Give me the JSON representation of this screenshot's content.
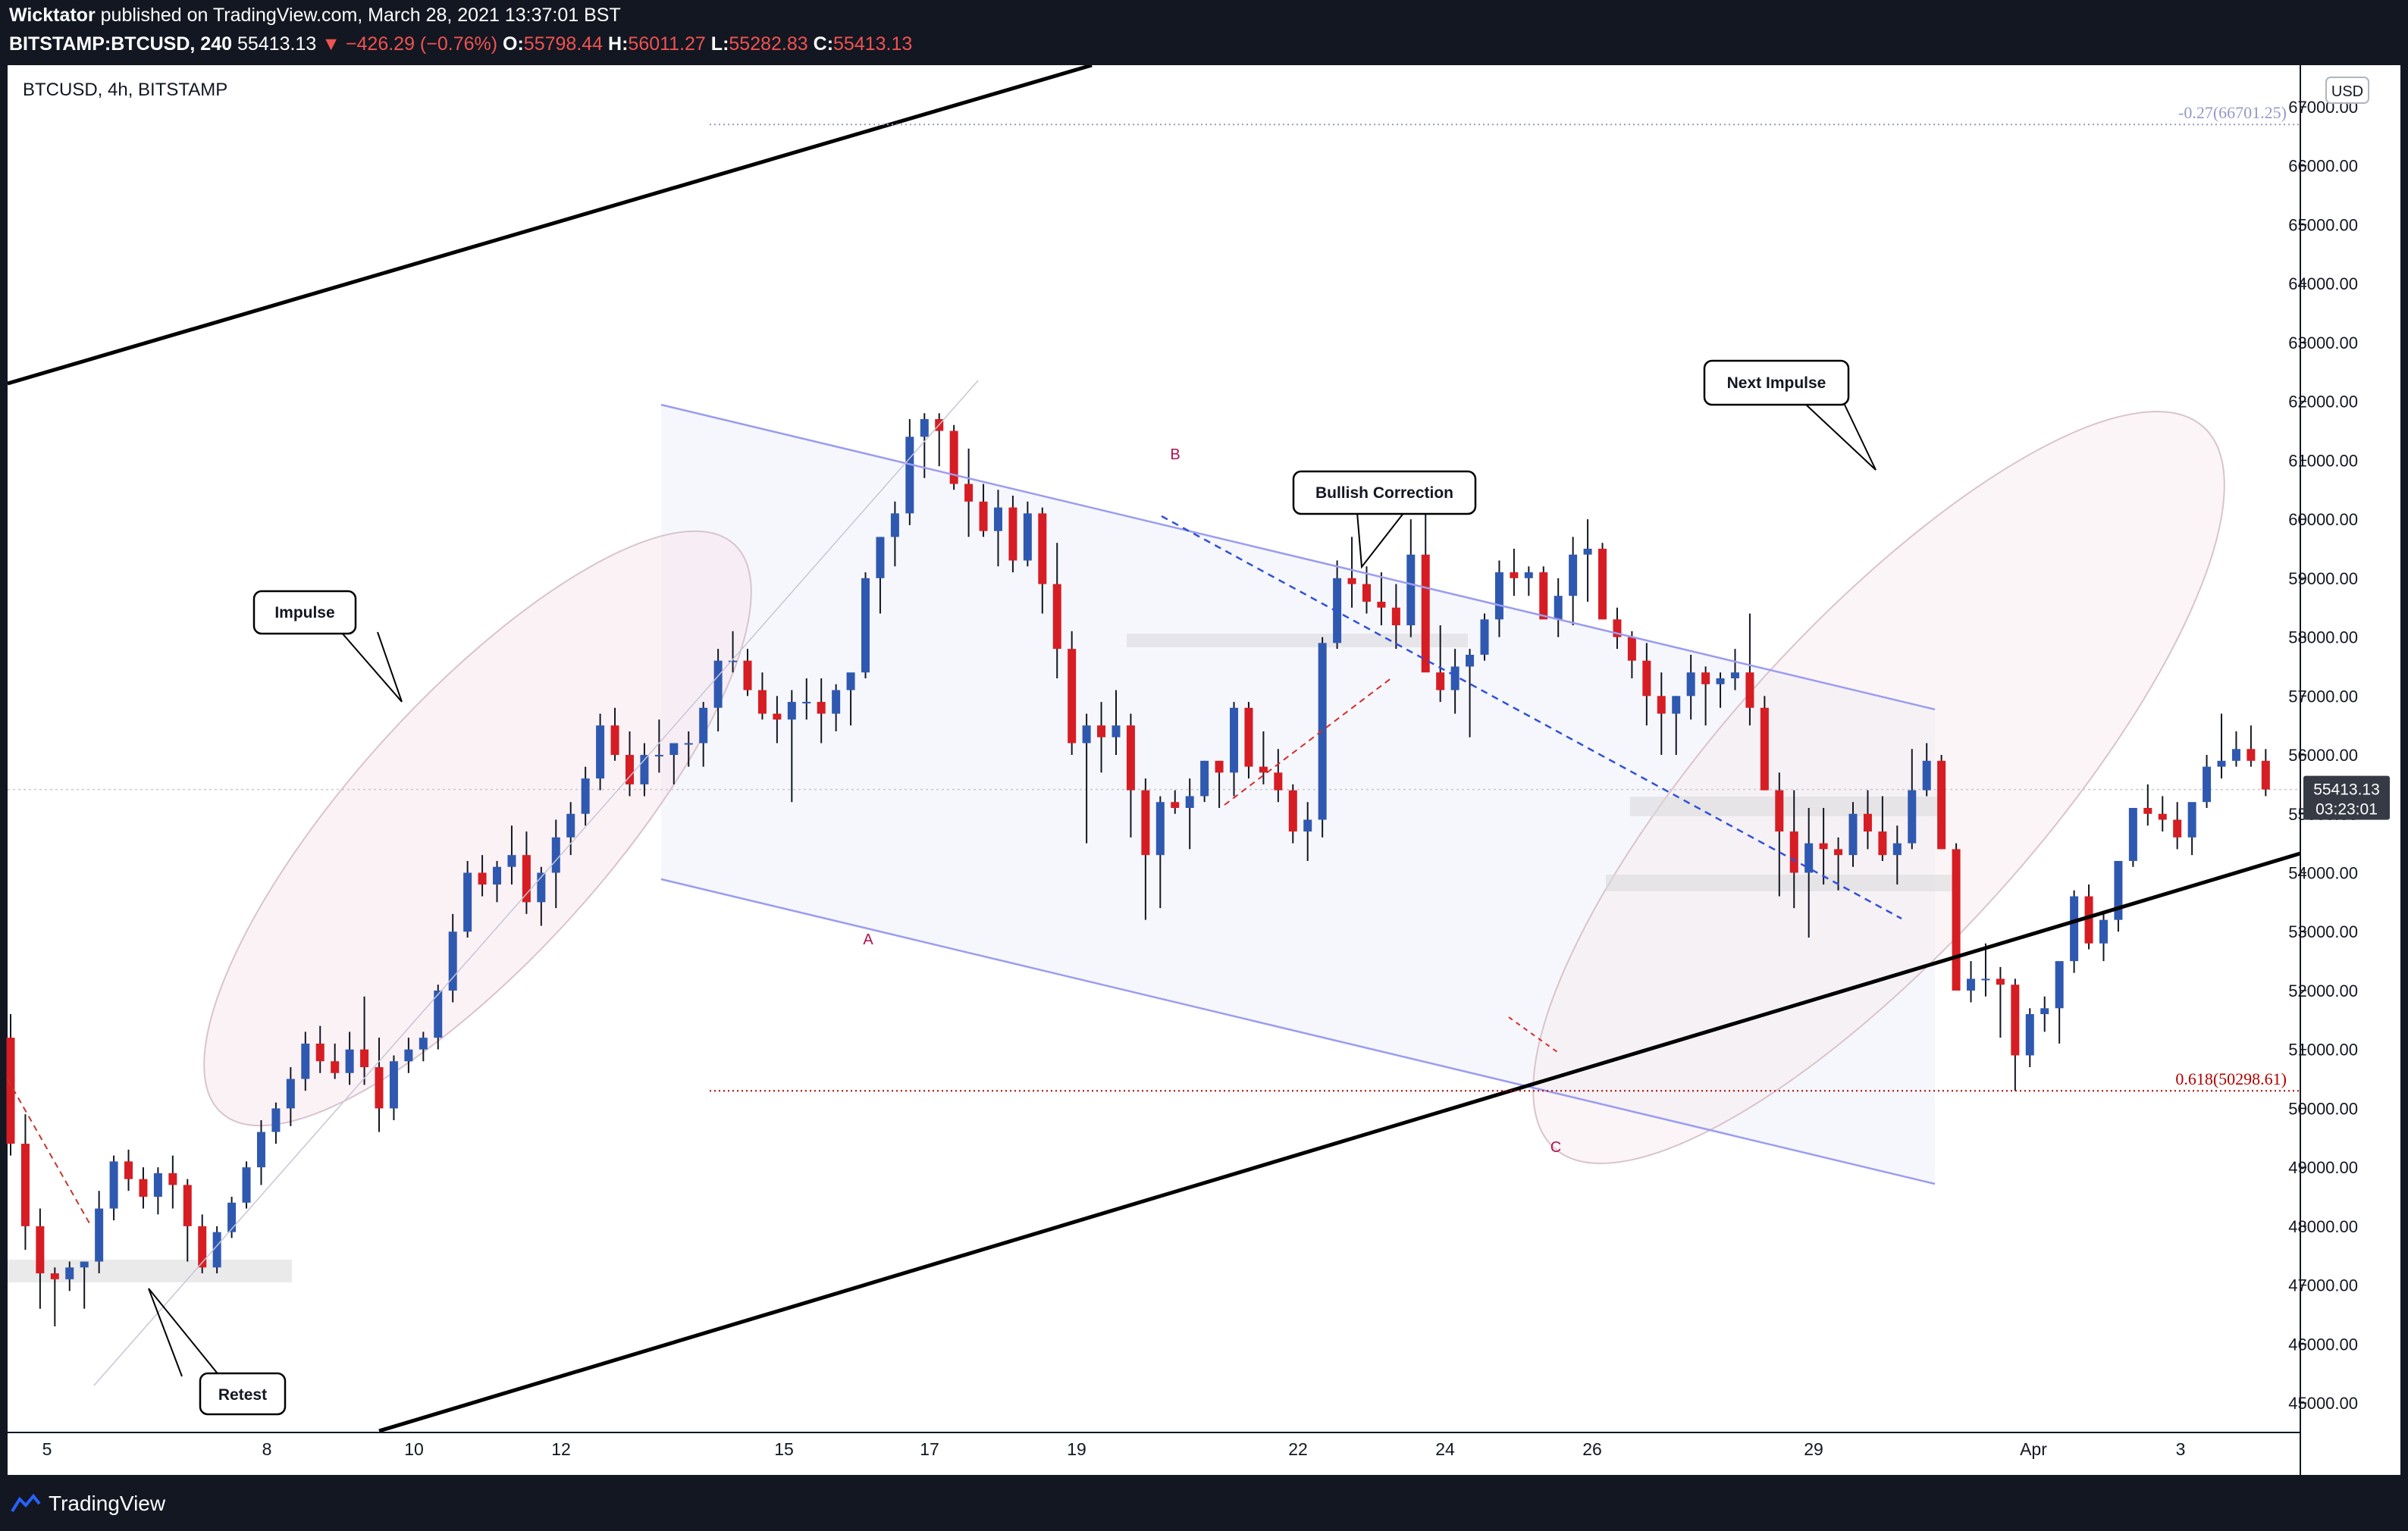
{
  "header": {
    "author": "Wicktator",
    "published": "published on TradingView.com, March 28, 2021 13:37:01 BST",
    "symbol": "BITSTAMP:BTCUSD, 240",
    "last": "55413.13",
    "change_arrow": "▼",
    "change": "−426.29 (−0.76%)",
    "o_label": "O:",
    "o": "55798.44",
    "h_label": "H:",
    "h": "56011.27",
    "l_label": "L:",
    "l": "55282.83",
    "c_label": "C:",
    "c": "55413.13"
  },
  "legend": "BTCUSD, 4h, BITSTAMP",
  "currency": "USD",
  "footer": {
    "brand": "TradingView"
  },
  "colors": {
    "up": "#2f59b0",
    "down": "#d61d23",
    "bg": "#131722"
  },
  "chart_data": {
    "type": "candlestick",
    "x": [
      "5",
      "8",
      "10",
      "12",
      "15",
      "17",
      "19",
      "22",
      "24",
      "26",
      "29",
      "Apr",
      "3"
    ],
    "y_ticks": [
      45000,
      46000,
      47000,
      48000,
      49000,
      50000,
      51000,
      52000,
      53000,
      54000,
      55000,
      56000,
      57000,
      58000,
      59000,
      60000,
      61000,
      62000,
      63000,
      64000,
      65000,
      66000,
      67000
    ],
    "ylim": [
      44700,
      67400
    ],
    "last_price": "55413.13",
    "countdown": "03:23:01",
    "fib_levels": [
      {
        "label": "-0.27(66701.25)",
        "value": 66701.25,
        "color": "#9598c8"
      },
      {
        "label": "0.618(50298.61)",
        "value": 50298.61,
        "color": "#b00000"
      }
    ],
    "annotations": [
      "Impulse",
      "Retest",
      "Bullish Correction",
      "Next Impulse",
      "A",
      "B",
      "C"
    ],
    "candles": [
      [
        51200,
        51600,
        49200,
        49400
      ],
      [
        49400,
        49900,
        47600,
        48000
      ],
      [
        48000,
        48300,
        46600,
        47200
      ],
      [
        47200,
        47300,
        46300,
        47100
      ],
      [
        47100,
        47400,
        46900,
        47300
      ],
      [
        47300,
        47400,
        46600,
        47400
      ],
      [
        47400,
        48600,
        47200,
        48300
      ],
      [
        48300,
        49200,
        48100,
        49100
      ],
      [
        49100,
        49300,
        48600,
        48800
      ],
      [
        48800,
        49000,
        48300,
        48500
      ],
      [
        48500,
        49000,
        48200,
        48900
      ],
      [
        48900,
        49200,
        48300,
        48700
      ],
      [
        48700,
        48800,
        47400,
        48000
      ],
      [
        48000,
        48200,
        47200,
        47300
      ],
      [
        47300,
        48000,
        47200,
        47900
      ],
      [
        47900,
        48500,
        47800,
        48400
      ],
      [
        48400,
        49100,
        48300,
        49000
      ],
      [
        49000,
        49800,
        48700,
        49600
      ],
      [
        49600,
        50100,
        49400,
        50000
      ],
      [
        50000,
        50700,
        49700,
        50500
      ],
      [
        50500,
        51300,
        50300,
        51100
      ],
      [
        51100,
        51400,
        50600,
        50800
      ],
      [
        50800,
        51100,
        50500,
        50600
      ],
      [
        50600,
        51300,
        50400,
        51000
      ],
      [
        51000,
        51900,
        50400,
        50700
      ],
      [
        50700,
        51200,
        49600,
        50000
      ],
      [
        50000,
        50900,
        49800,
        50800
      ],
      [
        50800,
        51200,
        50600,
        51000
      ],
      [
        51000,
        51300,
        50800,
        51200
      ],
      [
        51200,
        52100,
        51000,
        52000
      ],
      [
        52000,
        53300,
        51800,
        53000
      ],
      [
        53000,
        54200,
        52900,
        54000
      ],
      [
        54000,
        54300,
        53600,
        53800
      ],
      [
        53800,
        54200,
        53500,
        54100
      ],
      [
        54100,
        54800,
        53800,
        54300
      ],
      [
        54300,
        54700,
        53300,
        53500
      ],
      [
        53500,
        54100,
        53100,
        54000
      ],
      [
        54000,
        54900,
        53400,
        54600
      ],
      [
        54600,
        55200,
        54300,
        55000
      ],
      [
        55000,
        55800,
        54800,
        55600
      ],
      [
        55600,
        56700,
        55400,
        56500
      ],
      [
        56500,
        56800,
        55900,
        56000
      ],
      [
        56000,
        56400,
        55300,
        55500
      ],
      [
        55500,
        56200,
        55300,
        56000
      ],
      [
        56000,
        56600,
        55700,
        56000
      ],
      [
        56000,
        56200,
        55500,
        56200
      ],
      [
        56200,
        56400,
        55800,
        56200
      ],
      [
        56200,
        56900,
        55800,
        56800
      ],
      [
        56800,
        57800,
        56400,
        57600
      ],
      [
        57600,
        58100,
        57400,
        57600
      ],
      [
        57600,
        57800,
        57000,
        57100
      ],
      [
        57100,
        57400,
        56600,
        56700
      ],
      [
        56700,
        57000,
        56200,
        56600
      ],
      [
        56600,
        57100,
        55200,
        56900
      ],
      [
        56900,
        57300,
        56600,
        56900
      ],
      [
        56900,
        57300,
        56200,
        56700
      ],
      [
        56700,
        57200,
        56400,
        57100
      ],
      [
        57100,
        57300,
        56500,
        57400
      ],
      [
        57400,
        59100,
        57300,
        59000
      ],
      [
        59000,
        59700,
        58400,
        59700
      ],
      [
        59700,
        60300,
        59200,
        60100
      ],
      [
        60100,
        61700,
        59900,
        61400
      ],
      [
        61400,
        61800,
        60700,
        61700
      ],
      [
        61700,
        61800,
        60900,
        61500
      ],
      [
        61500,
        61600,
        60500,
        60600
      ],
      [
        60600,
        61200,
        59700,
        60300
      ],
      [
        60300,
        60600,
        59700,
        59800
      ],
      [
        59800,
        60500,
        59200,
        60200
      ],
      [
        60200,
        60400,
        59100,
        59300
      ],
      [
        59300,
        60300,
        59200,
        60100
      ],
      [
        60100,
        60200,
        58400,
        58900
      ],
      [
        58900,
        59600,
        57300,
        57800
      ],
      [
        57800,
        58100,
        56000,
        56200
      ],
      [
        56200,
        56700,
        54500,
        56500
      ],
      [
        56500,
        56900,
        55700,
        56300
      ],
      [
        56300,
        57100,
        56000,
        56500
      ],
      [
        56500,
        56700,
        54600,
        55400
      ],
      [
        55400,
        55600,
        53200,
        54300
      ],
      [
        54300,
        55300,
        53400,
        55200
      ],
      [
        55200,
        55400,
        55000,
        55100
      ],
      [
        55100,
        55600,
        54400,
        55300
      ],
      [
        55300,
        55900,
        55200,
        55900
      ],
      [
        55900,
        55900,
        55100,
        55700
      ],
      [
        55700,
        56900,
        55300,
        56800
      ],
      [
        56800,
        56900,
        55600,
        55800
      ],
      [
        55800,
        56400,
        55500,
        55700
      ],
      [
        55700,
        56100,
        55200,
        55400
      ],
      [
        55400,
        55500,
        54500,
        54700
      ],
      [
        54700,
        55200,
        54200,
        54900
      ],
      [
        54900,
        58000,
        54600,
        57900
      ],
      [
        57900,
        59300,
        57800,
        59000
      ],
      [
        59000,
        59700,
        58500,
        58900
      ],
      [
        58900,
        59200,
        58400,
        58600
      ],
      [
        58600,
        59100,
        58200,
        58500
      ],
      [
        58500,
        58900,
        57800,
        58200
      ],
      [
        58200,
        60000,
        58000,
        59400
      ],
      [
        59400,
        60100,
        57500,
        57400
      ],
      [
        57400,
        58200,
        56900,
        57100
      ],
      [
        57100,
        57800,
        56700,
        57500
      ],
      [
        57500,
        57800,
        56300,
        57700
      ],
      [
        57700,
        58400,
        57600,
        58300
      ],
      [
        58300,
        59300,
        58000,
        59100
      ],
      [
        59100,
        59500,
        58700,
        59000
      ],
      [
        59000,
        59200,
        58700,
        59100
      ],
      [
        59100,
        59200,
        58400,
        58300
      ],
      [
        58300,
        59000,
        58000,
        58700
      ],
      [
        58700,
        59700,
        58200,
        59400
      ],
      [
        59400,
        60000,
        58600,
        59500
      ],
      [
        59500,
        59600,
        58300,
        58300
      ],
      [
        58300,
        58500,
        57800,
        58000
      ],
      [
        58000,
        58100,
        57300,
        57600
      ],
      [
        57600,
        57900,
        56500,
        57000
      ],
      [
        57000,
        57400,
        56000,
        56700
      ],
      [
        56700,
        57000,
        56000,
        57000
      ],
      [
        57000,
        57700,
        56600,
        57400
      ],
      [
        57400,
        57500,
        56500,
        57200
      ],
      [
        57200,
        57400,
        56800,
        57300
      ],
      [
        57300,
        57800,
        57100,
        57400
      ],
      [
        57400,
        58400,
        56500,
        56800
      ],
      [
        56800,
        57000,
        55400,
        55400
      ],
      [
        55400,
        55700,
        53600,
        54700
      ],
      [
        54700,
        55400,
        53400,
        54000
      ],
      [
        54000,
        55100,
        52900,
        54500
      ],
      [
        54500,
        55100,
        53800,
        54400
      ],
      [
        54400,
        54600,
        53700,
        54300
      ],
      [
        54300,
        55200,
        54100,
        55000
      ],
      [
        55000,
        55400,
        54400,
        54700
      ],
      [
        54700,
        55300,
        54200,
        54300
      ],
      [
        54300,
        54800,
        53800,
        54500
      ],
      [
        54500,
        56100,
        54400,
        55400
      ],
      [
        55400,
        56200,
        55300,
        55900
      ],
      [
        55900,
        56000,
        54500,
        54400
      ],
      [
        54400,
        54500,
        52200,
        52000
      ],
      [
        52000,
        52500,
        51800,
        52200
      ],
      [
        52200,
        52800,
        51900,
        52200
      ],
      [
        52200,
        52400,
        51200,
        52100
      ],
      [
        52100,
        52200,
        50300,
        50900
      ],
      [
        50900,
        51700,
        50700,
        51600
      ],
      [
        51600,
        51900,
        51300,
        51700
      ],
      [
        51700,
        52300,
        51100,
        52500
      ],
      [
        52500,
        53700,
        52300,
        53600
      ],
      [
        53600,
        53800,
        52700,
        52800
      ],
      [
        52800,
        53300,
        52500,
        53200
      ],
      [
        53200,
        54000,
        53000,
        54200
      ],
      [
        54200,
        55000,
        54100,
        55100
      ],
      [
        55100,
        55500,
        54800,
        55000
      ],
      [
        55000,
        55300,
        54700,
        54900
      ],
      [
        54900,
        55200,
        54400,
        54600
      ],
      [
        54600,
        55100,
        54300,
        55200
      ],
      [
        55200,
        56000,
        55100,
        55800
      ],
      [
        55800,
        56700,
        55600,
        55900
      ],
      [
        55900,
        56400,
        55800,
        56100
      ],
      [
        56100,
        56500,
        55800,
        55900
      ],
      [
        55900,
        56100,
        55300,
        55413
      ]
    ]
  }
}
